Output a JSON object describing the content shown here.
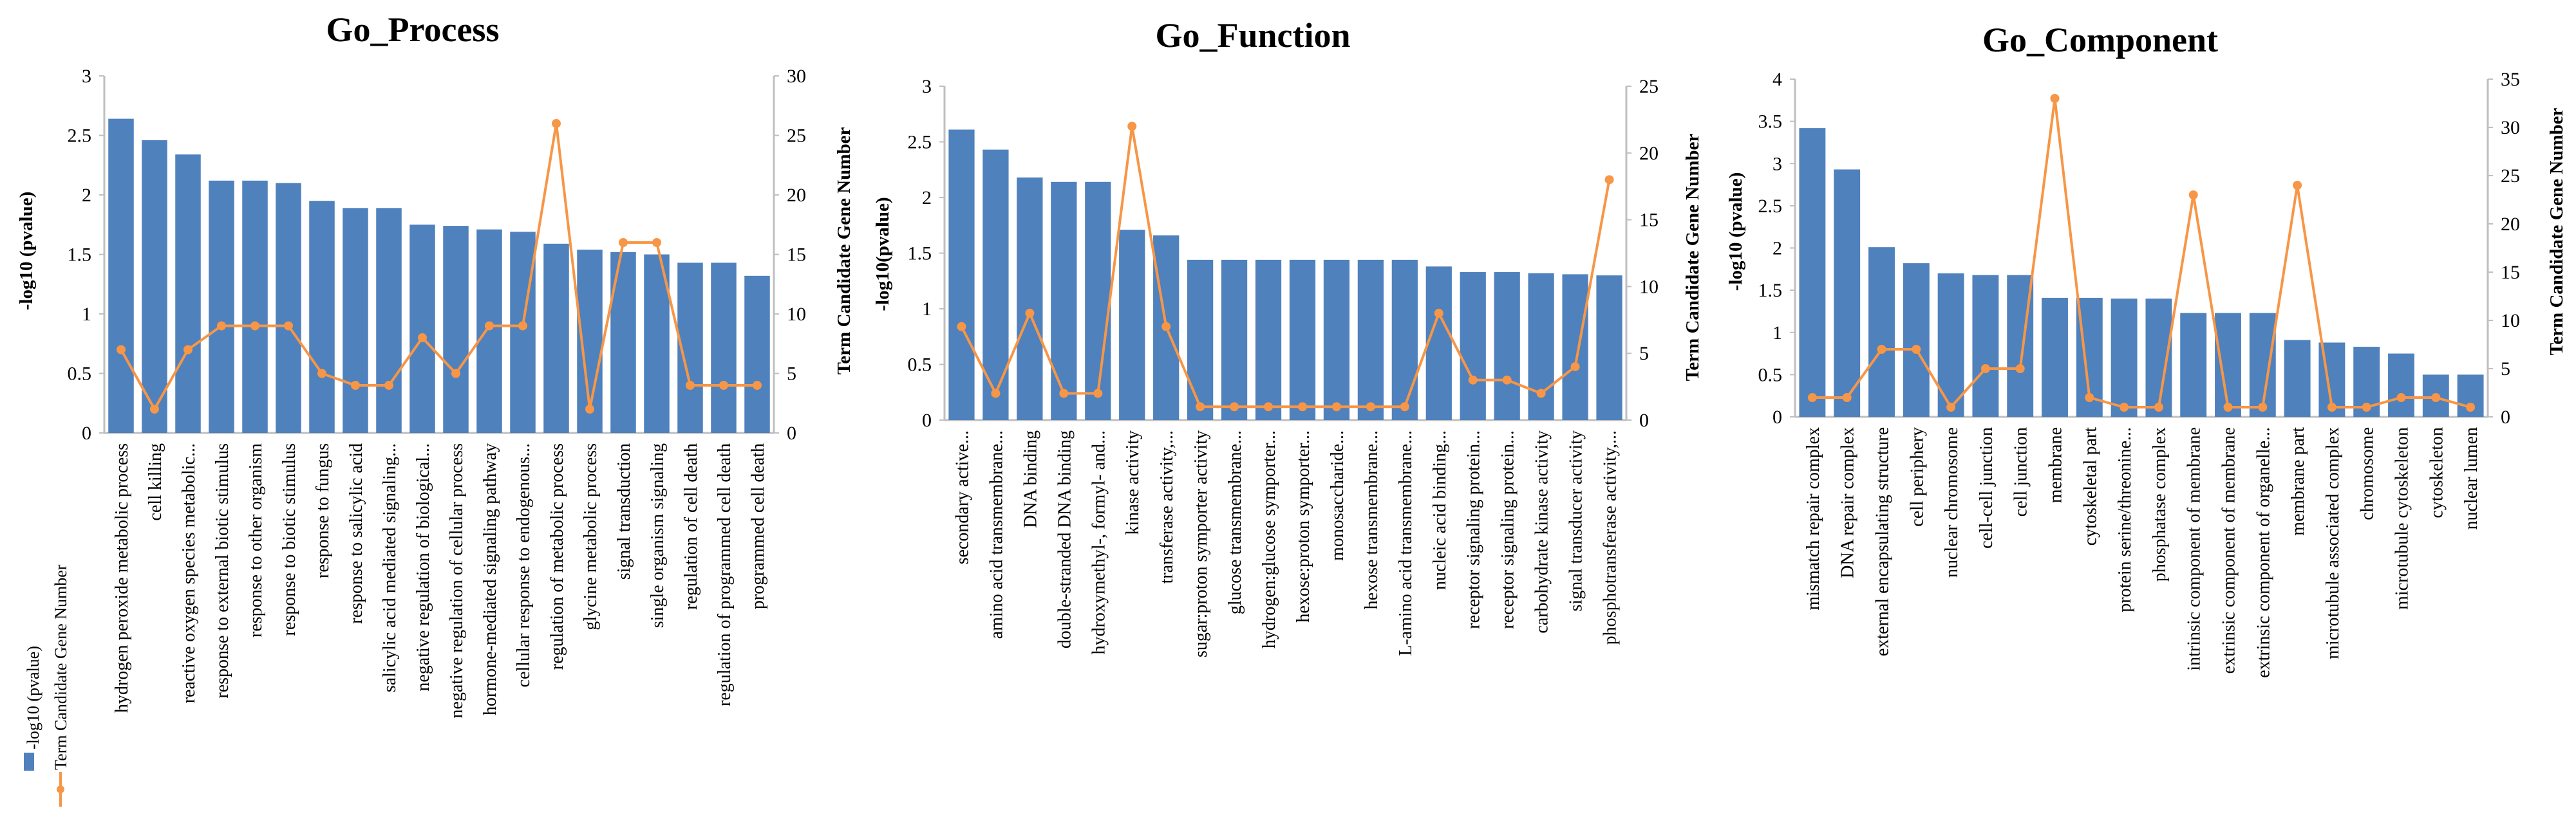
{
  "legend": {
    "bar_label": "-log10 (pvalue)",
    "line_label": "Term Candidate Gene Number"
  },
  "colors": {
    "bar": "#4f81bd",
    "line": "#f79646",
    "axis": "#bfbfbf"
  },
  "chart_data": [
    {
      "type": "bar",
      "title": "Go_Process",
      "ylabel": "-log10 (pvalue)",
      "y2label": "Term Candidate Gene Number",
      "ylim": [
        0,
        3
      ],
      "yticks": [
        "0",
        "0.5",
        "1",
        "1.5",
        "2",
        "2.5",
        "3"
      ],
      "y2lim": [
        0,
        30
      ],
      "y2ticks": [
        "0",
        "5",
        "10",
        "15",
        "20",
        "25",
        "30"
      ],
      "categories": [
        "hydrogen peroxide metabolic process",
        "cell killing",
        "reactive oxygen species metabolic...",
        "response to external biotic stimulus",
        "response to other organism",
        "response to biotic stimulus",
        "response to fungus",
        "response to salicylic acid",
        "salicylic acid mediated signaling...",
        "negative regulation of biological...",
        "negative regulation of cellular process",
        "hormone-mediated signaling pathway",
        "cellular response to endogenous...",
        "regulation of metabolic process",
        "glycine metabolic process",
        "signal transduction",
        "single organism signaling",
        "regulation of cell death",
        "regulation of programmed cell death",
        "programmed cell death"
      ],
      "series": [
        {
          "name": "-log10 (pvalue)",
          "kind": "bar",
          "values": [
            2.64,
            2.46,
            2.34,
            2.12,
            2.12,
            2.1,
            1.95,
            1.89,
            1.89,
            1.75,
            1.74,
            1.71,
            1.69,
            1.59,
            1.54,
            1.52,
            1.5,
            1.43,
            1.43,
            1.32
          ]
        },
        {
          "name": "Term Candidate Gene Number",
          "kind": "line",
          "axis": "right",
          "values": [
            7,
            2,
            7,
            9,
            9,
            9,
            5,
            4,
            4,
            8,
            5,
            9,
            9,
            26,
            2,
            16,
            16,
            4,
            4,
            4
          ]
        }
      ]
    },
    {
      "type": "bar",
      "title": "Go_Function",
      "ylabel": "-log10(pvalue)",
      "y2label": "Term Candidate Gene Number",
      "ylim": [
        0,
        3
      ],
      "yticks": [
        "0",
        "0.5",
        "1",
        "1.5",
        "2",
        "2.5",
        "3"
      ],
      "y2lim": [
        0,
        25
      ],
      "y2ticks": [
        "0",
        "5",
        "10",
        "15",
        "20",
        "25"
      ],
      "categories": [
        "secondary active...",
        "amino acid transmembrane...",
        "DNA binding",
        "double-stranded DNA binding",
        "hydroxymethyl-, formyl- and...",
        "kinase activity",
        "transferase activity,...",
        "sugar:proton symporter activity",
        "glucose transmembrane...",
        "hydrogen:glucose symporter...",
        "hexose:proton symporter...",
        "monosaccharide...",
        "hexose transmembrane...",
        "L-amino acid transmembrane...",
        "nucleic acid binding...",
        "receptor signaling protein...",
        "receptor signaling protein...",
        "carbohydrate kinase activity",
        "signal transducer activity",
        "phosphotransferase activity,..."
      ],
      "series": [
        {
          "name": "-log10(pvalue)",
          "kind": "bar",
          "values": [
            2.61,
            2.43,
            2.18,
            2.14,
            2.14,
            1.71,
            1.66,
            1.44,
            1.44,
            1.44,
            1.44,
            1.44,
            1.44,
            1.44,
            1.38,
            1.33,
            1.33,
            1.32,
            1.31,
            1.3
          ]
        },
        {
          "name": "Term Candidate Gene Number",
          "kind": "line",
          "axis": "right",
          "values": [
            7,
            2,
            8,
            2,
            2,
            22,
            7,
            1,
            1,
            1,
            1,
            1,
            1,
            1,
            8,
            3,
            3,
            2,
            4,
            18
          ]
        }
      ]
    },
    {
      "type": "bar",
      "title": "Go_Component",
      "ylabel": "-log10 (pvalue)",
      "y2label": "Term Candidate Gene Number",
      "ylim": [
        0,
        4
      ],
      "yticks": [
        "0",
        "0.5",
        "1",
        "1.5",
        "2",
        "2.5",
        "3",
        "3.5",
        "4"
      ],
      "y2lim": [
        0,
        35
      ],
      "y2ticks": [
        "0",
        "5",
        "10",
        "15",
        "20",
        "25",
        "30",
        "35"
      ],
      "categories": [
        "mismatch repair complex",
        "DNA repair complex",
        "external encapsulating structure",
        "cell periphery",
        "nuclear chromosome",
        "cell-cell junction",
        "cell junction",
        "membrane",
        "cytoskeletal part",
        "protein serine/threonine...",
        "phosphatase complex",
        "intrinsic component of membrane",
        "extrinsic component of membrane",
        "extrinsic component of organelle...",
        "membrane part",
        "microtubule associated complex",
        "chromosome",
        "microtubule cytoskeleton",
        "cytoskeleton",
        "nuclear lumen"
      ],
      "series": [
        {
          "name": "-log10 (pvalue)",
          "kind": "bar",
          "values": [
            3.42,
            2.93,
            2.01,
            1.82,
            1.7,
            1.68,
            1.68,
            1.41,
            1.41,
            1.4,
            1.4,
            1.23,
            1.23,
            1.23,
            0.91,
            0.88,
            0.83,
            0.75,
            0.5,
            0.5
          ]
        },
        {
          "name": "Term Candidate Gene Number",
          "kind": "line",
          "axis": "right",
          "values": [
            2,
            2,
            7,
            7,
            1,
            5,
            5,
            33,
            2,
            1,
            1,
            23,
            1,
            1,
            24,
            1,
            1,
            2,
            2,
            1
          ]
        }
      ]
    }
  ]
}
